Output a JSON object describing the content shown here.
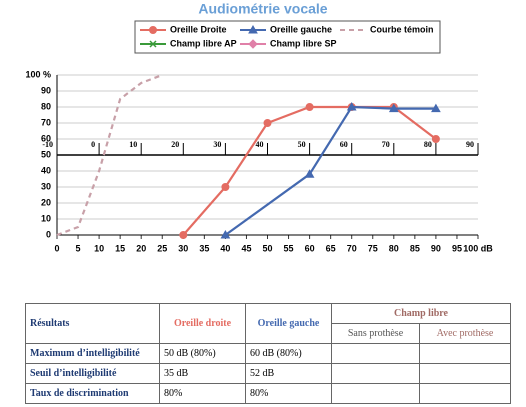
{
  "chart_data": {
    "type": "line",
    "title": "Audiométrie vocale",
    "series": [
      {
        "name": "Oreille Droite",
        "color": "#e46c62",
        "marker": "circle",
        "x": [
          30,
          40,
          50,
          60,
          70,
          80,
          90
        ],
        "values": [
          0,
          30,
          70,
          80,
          80,
          80,
          60
        ]
      },
      {
        "name": "Oreille gauche",
        "color": "#4469b0",
        "marker": "triangle",
        "x": [
          40,
          60,
          70,
          80,
          90
        ],
        "values": [
          0,
          38,
          80,
          79,
          79
        ]
      },
      {
        "name": "Courbe témoin",
        "color": "#c8a0a8",
        "marker": "none",
        "dashed": true,
        "x": [
          0,
          5,
          10,
          15,
          20,
          25
        ],
        "values": [
          0,
          5,
          40,
          85,
          95,
          100
        ]
      },
      {
        "name": "Champ libre AP",
        "color": "#3a9a3a",
        "marker": "x",
        "x": [],
        "values": []
      },
      {
        "name": "Champ libre SP",
        "color": "#e080a8",
        "marker": "diamond",
        "x": [],
        "values": []
      }
    ],
    "xlim": [
      0,
      100
    ],
    "xticks": [
      0,
      5,
      10,
      15,
      20,
      25,
      30,
      35,
      40,
      45,
      50,
      55,
      60,
      65,
      70,
      75,
      80,
      85,
      90,
      95,
      {
        "value": 100,
        "label": "100 dB"
      }
    ],
    "ylim": [
      0,
      100
    ],
    "yticks": [
      0,
      10,
      20,
      30,
      40,
      50,
      60,
      70,
      80,
      90,
      {
        "value": 100,
        "label": "100 %"
      }
    ],
    "x2lim": [
      -10,
      90
    ],
    "x2ticks": [
      -10,
      0,
      10,
      20,
      30,
      40,
      50,
      60,
      70,
      80,
      90
    ],
    "x2_axis_at": 50,
    "grid": true
  },
  "table": {
    "header": [
      "Résultats",
      "Oreille droite",
      "Oreille gauche",
      "Champ libre"
    ],
    "subheader": [
      "Sans prothèse",
      "Avec prothèse"
    ],
    "rows": [
      [
        "Maximum d’intelligibilité",
        "50 dB (80%)",
        "60 dB (80%)"
      ],
      [
        "Seuil d’intelligibilité",
        "35 dB",
        "52 dB"
      ],
      [
        "Taux de discrimination",
        "80%",
        "80%"
      ]
    ]
  }
}
